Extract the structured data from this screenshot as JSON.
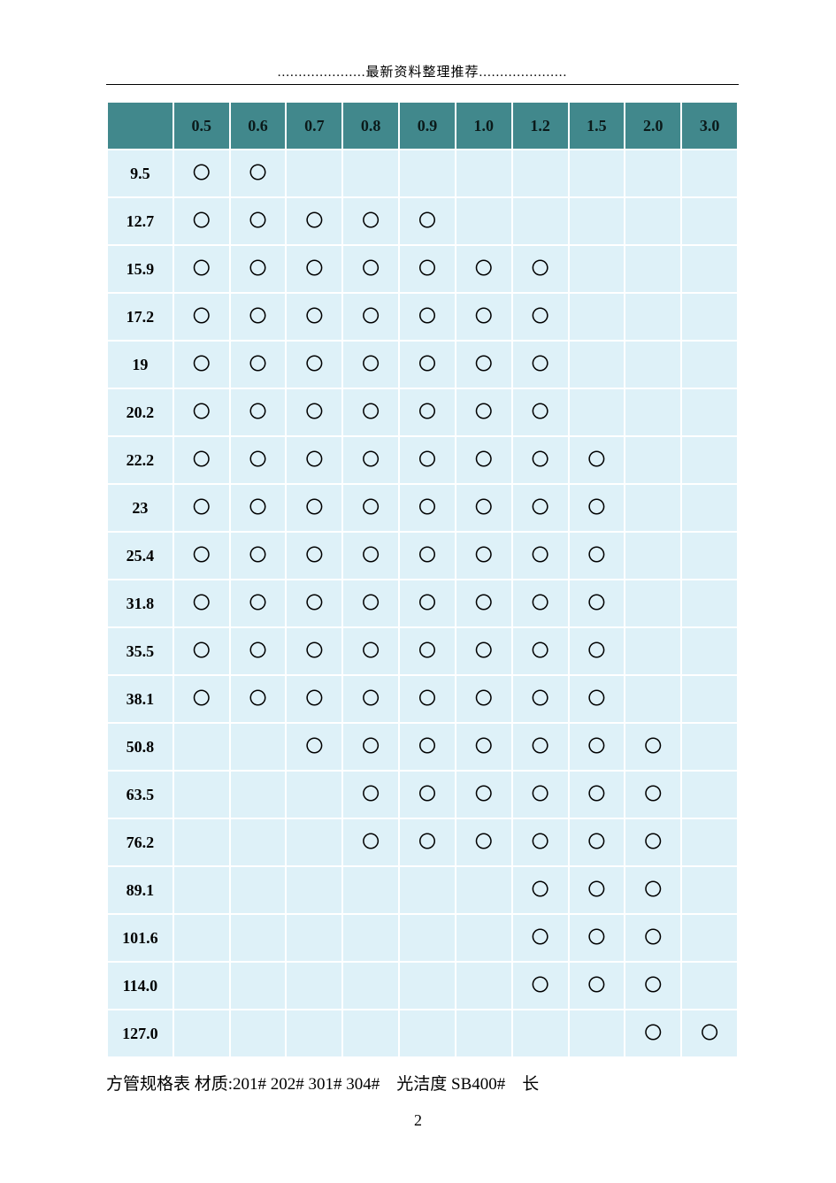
{
  "header": {
    "title": ".....................最新资料整理推荐....................."
  },
  "table": {
    "columns": [
      "",
      "0.5",
      "0.6",
      "0.7",
      "0.8",
      "0.9",
      "1.0",
      "1.2",
      "1.5",
      "2.0",
      "3.0"
    ],
    "rowLabels": [
      "9.5",
      "12.7",
      "15.9",
      "17.2",
      "19",
      "20.2",
      "22.2",
      "23",
      "25.4",
      "31.8",
      "35.5",
      "38.1",
      "50.8",
      "63.5",
      "76.2",
      "89.1",
      "101.6",
      "114.0",
      "127.0"
    ],
    "marks": [
      [
        1,
        1,
        0,
        0,
        0,
        0,
        0,
        0,
        0,
        0
      ],
      [
        1,
        1,
        1,
        1,
        1,
        0,
        0,
        0,
        0,
        0
      ],
      [
        1,
        1,
        1,
        1,
        1,
        1,
        1,
        0,
        0,
        0
      ],
      [
        1,
        1,
        1,
        1,
        1,
        1,
        1,
        0,
        0,
        0
      ],
      [
        1,
        1,
        1,
        1,
        1,
        1,
        1,
        0,
        0,
        0
      ],
      [
        1,
        1,
        1,
        1,
        1,
        1,
        1,
        0,
        0,
        0
      ],
      [
        1,
        1,
        1,
        1,
        1,
        1,
        1,
        1,
        0,
        0
      ],
      [
        1,
        1,
        1,
        1,
        1,
        1,
        1,
        1,
        0,
        0
      ],
      [
        1,
        1,
        1,
        1,
        1,
        1,
        1,
        1,
        0,
        0
      ],
      [
        1,
        1,
        1,
        1,
        1,
        1,
        1,
        1,
        0,
        0
      ],
      [
        1,
        1,
        1,
        1,
        1,
        1,
        1,
        1,
        0,
        0
      ],
      [
        1,
        1,
        1,
        1,
        1,
        1,
        1,
        1,
        0,
        0
      ],
      [
        0,
        0,
        1,
        1,
        1,
        1,
        1,
        1,
        1,
        0
      ],
      [
        0,
        0,
        0,
        1,
        1,
        1,
        1,
        1,
        1,
        0
      ],
      [
        0,
        0,
        0,
        1,
        1,
        1,
        1,
        1,
        1,
        0
      ],
      [
        0,
        0,
        0,
        0,
        0,
        0,
        1,
        1,
        1,
        0
      ],
      [
        0,
        0,
        0,
        0,
        0,
        0,
        1,
        1,
        1,
        0
      ],
      [
        0,
        0,
        0,
        0,
        0,
        0,
        1,
        1,
        1,
        0
      ],
      [
        0,
        0,
        0,
        0,
        0,
        0,
        0,
        0,
        1,
        1
      ]
    ],
    "markSymbol": "〇",
    "colors": {
      "header_bg": "#41888c",
      "cell_bg": "#def1f8",
      "border": "#ffffff",
      "text": "#000000"
    },
    "font_size_cell": 18,
    "font_size_header": 18
  },
  "footer": {
    "text": "方管规格表 材质:201# 202# 301# 304#    光洁度 SB400#    长"
  },
  "pageNumber": "2"
}
